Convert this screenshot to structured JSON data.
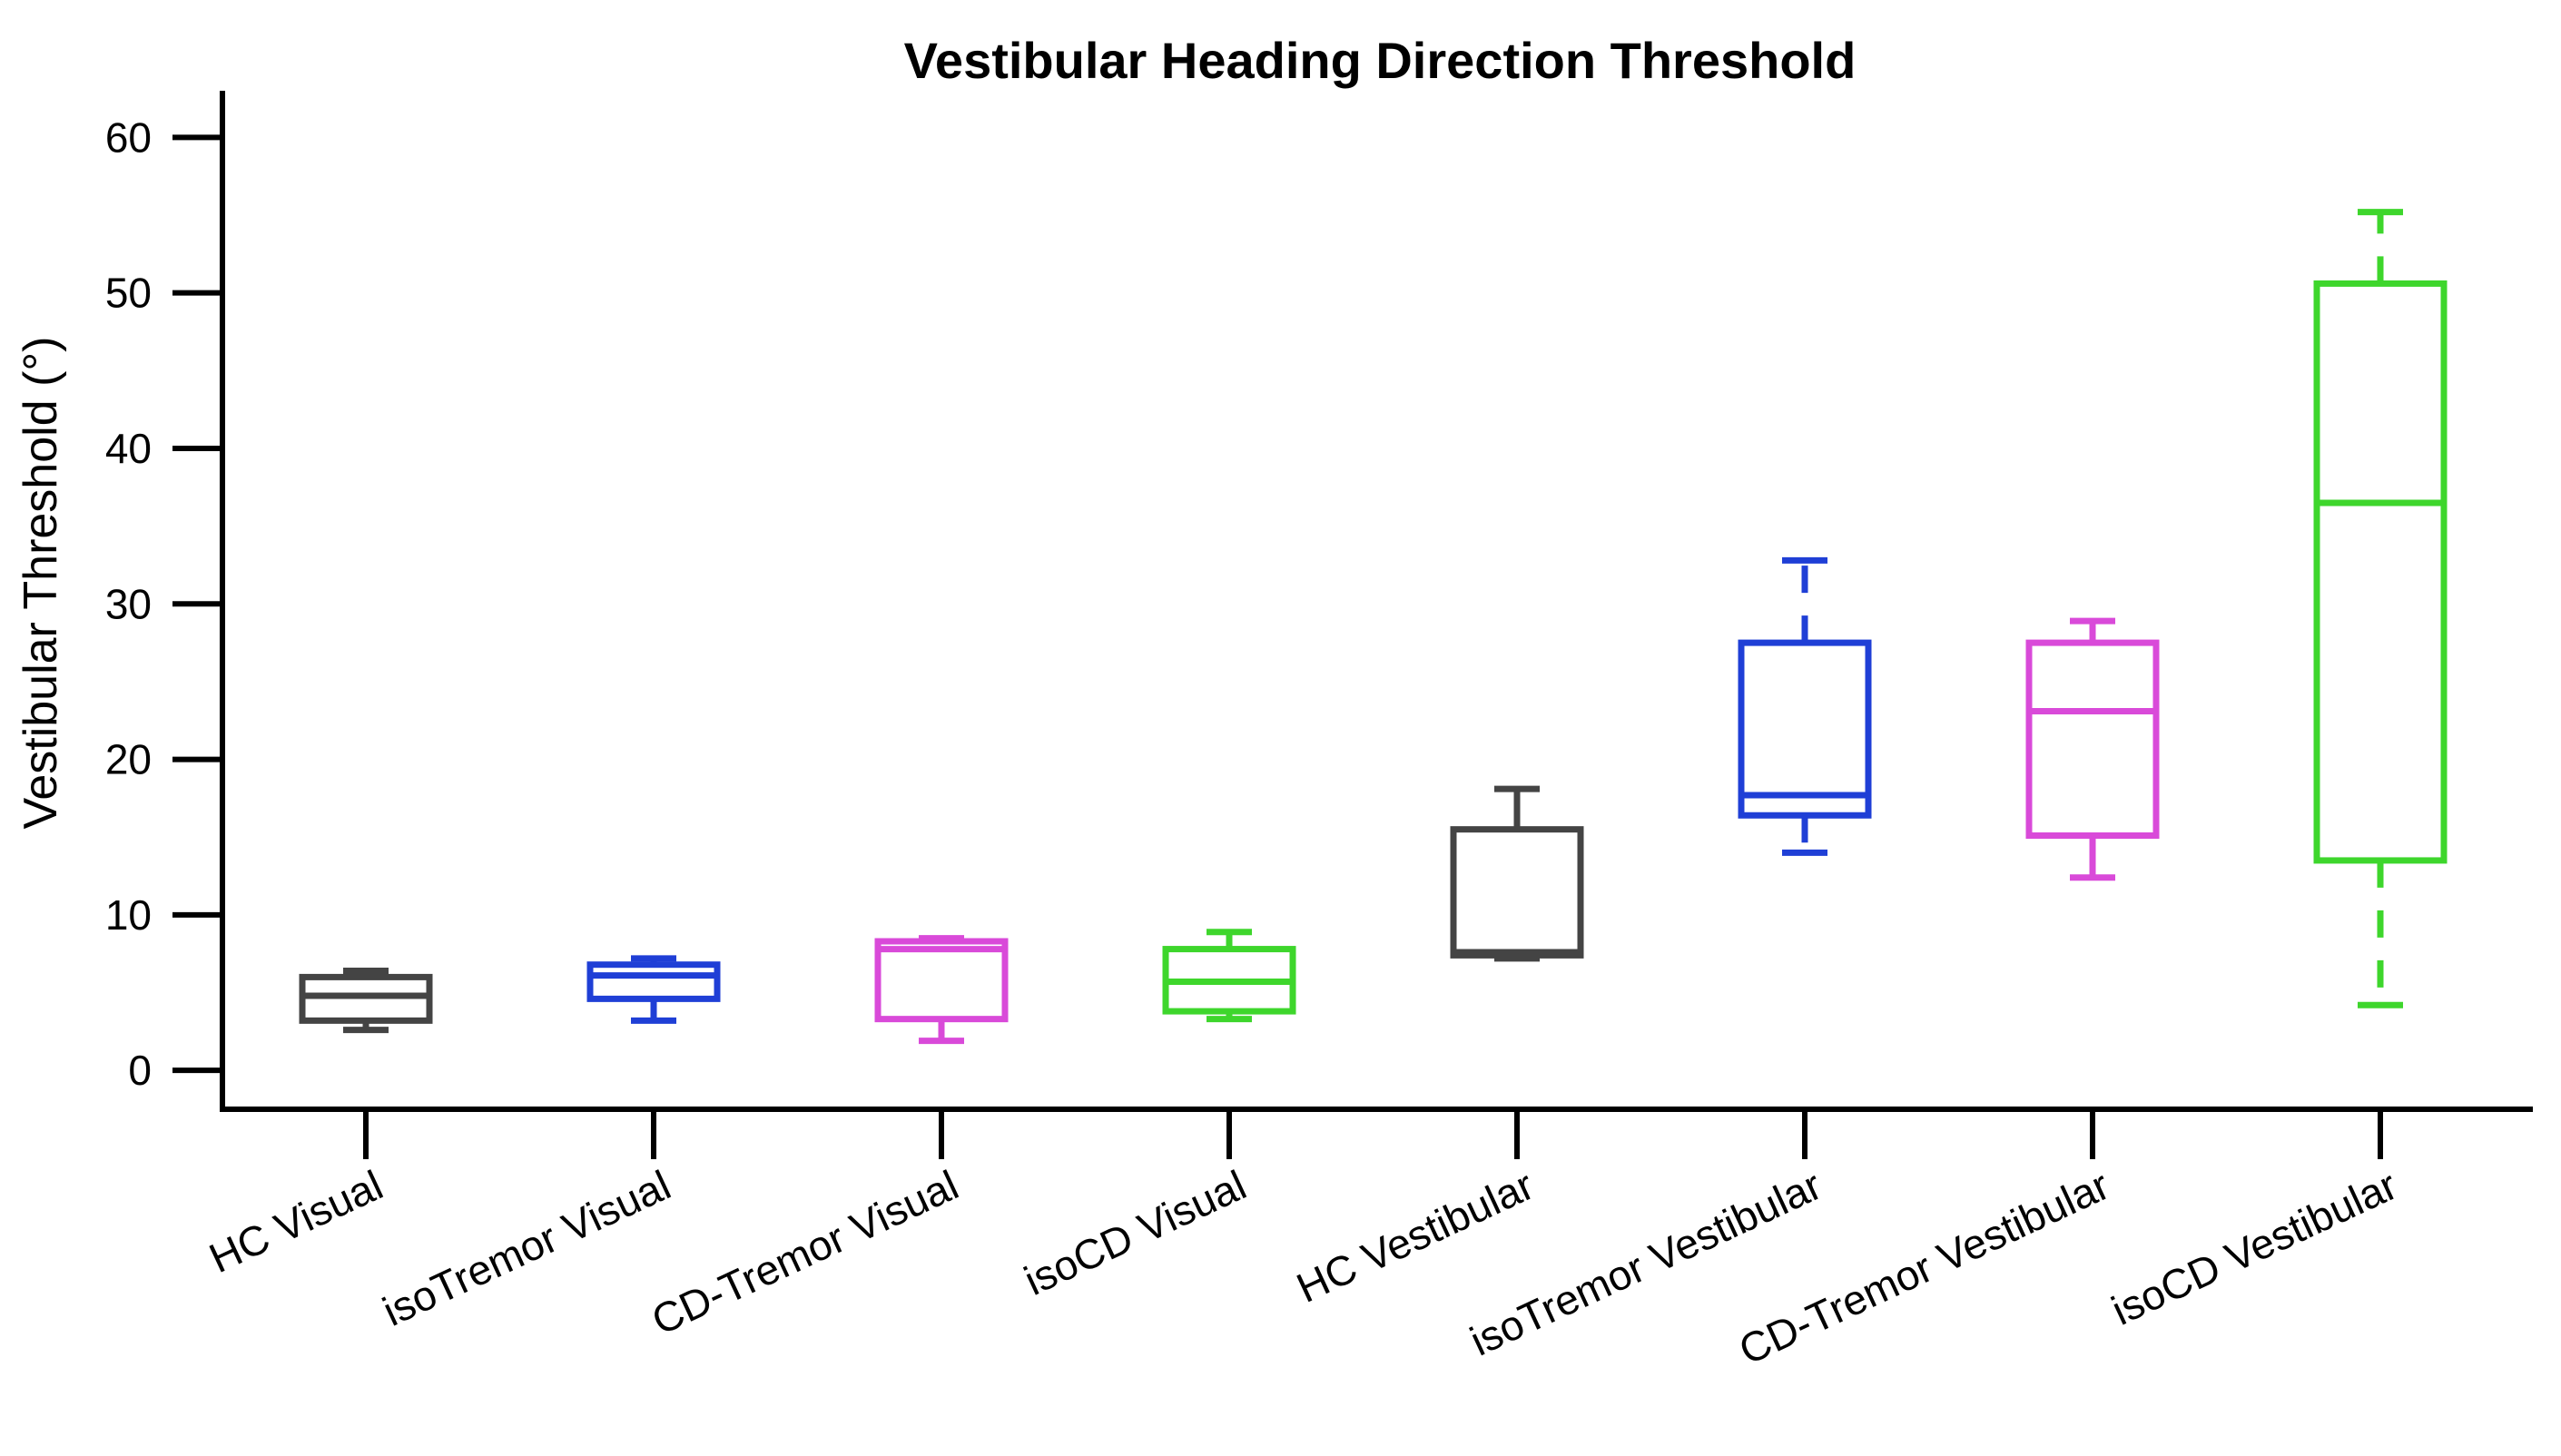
{
  "chart_data": {
    "type": "box",
    "title": "Vestibular Heading Direction Threshold",
    "xlabel": "",
    "ylabel": "Vestibular Threshold (°)",
    "ylim": [
      -2.5,
      63
    ],
    "yticks": [
      0,
      10,
      20,
      30,
      40,
      50,
      60
    ],
    "grid": false,
    "categories": [
      "HC Visual",
      "isoTremor Visual",
      "CD-Tremor Visual",
      "isoCD Visual",
      "HC Vestibular",
      "isoTremor Vestibular",
      "CD-Tremor Vestibular",
      "isoCD Vestibular"
    ],
    "boxes": [
      {
        "category": "HC Visual",
        "min": 2.6,
        "q1": 3.2,
        "median": 4.8,
        "q3": 6.0,
        "max": 6.4,
        "color": "#444444",
        "dashed_whisker": false
      },
      {
        "category": "isoTremor Visual",
        "min": 3.2,
        "q1": 4.6,
        "median": 6.1,
        "q3": 6.8,
        "max": 7.2,
        "color": "#1f3fd6",
        "dashed_whisker": false
      },
      {
        "category": "CD-Tremor Visual",
        "min": 1.9,
        "q1": 3.3,
        "median": 7.8,
        "q3": 8.3,
        "max": 8.5,
        "color": "#d94ad9",
        "dashed_whisker": false
      },
      {
        "category": "isoCD Visual",
        "min": 3.3,
        "q1": 3.8,
        "median": 5.7,
        "q3": 7.8,
        "max": 8.9,
        "color": "#3ed62c",
        "dashed_whisker": false
      },
      {
        "category": "HC Vestibular",
        "min": 7.2,
        "q1": 7.4,
        "median": 7.6,
        "q3": 15.5,
        "max": 18.1,
        "color": "#444444",
        "dashed_whisker": false
      },
      {
        "category": "isoTremor Vestibular",
        "min": 14.0,
        "q1": 16.4,
        "median": 17.7,
        "q3": 27.5,
        "max": 32.8,
        "color": "#1f3fd6",
        "dashed_whisker": true
      },
      {
        "category": "CD-Tremor Vestibular",
        "min": 12.4,
        "q1": 15.1,
        "median": 23.1,
        "q3": 27.5,
        "max": 28.9,
        "color": "#d94ad9",
        "dashed_whisker": false
      },
      {
        "category": "isoCD Vestibular",
        "min": 4.2,
        "q1": 13.5,
        "median": 36.5,
        "q3": 50.6,
        "max": 55.2,
        "color": "#3ed62c",
        "dashed_whisker": true
      }
    ]
  }
}
